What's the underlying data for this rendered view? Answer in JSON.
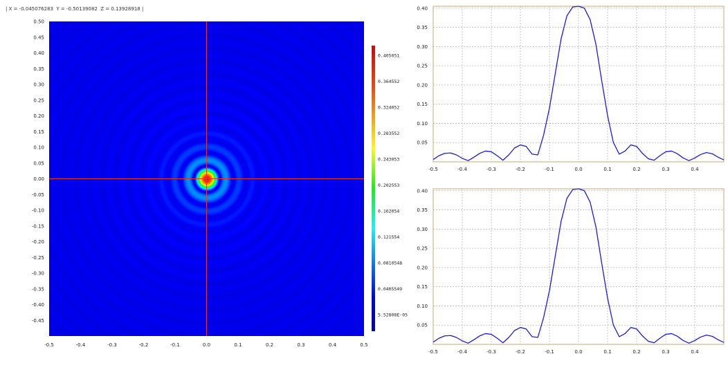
{
  "readout": {
    "text": "| X = -0.045076283  Y = -0.50139082  Z = 0.13928918 |"
  },
  "heatmap": {
    "xlim": [
      -0.5,
      0.5
    ],
    "ylim": [
      -0.5,
      0.5
    ],
    "x_ticks": [
      "-0.5",
      "-0.4",
      "-0.3",
      "-0.2",
      "-0.1",
      "0.0",
      "0.1",
      "0.2",
      "0.3",
      "0.4",
      "0.5"
    ],
    "y_ticks": [
      "0.50",
      "0.45",
      "0.40",
      "0.35",
      "0.30",
      "0.25",
      "0.20",
      "0.15",
      "0.10",
      "0.05",
      "0.00",
      "-0.05",
      "-0.10",
      "-0.15",
      "-0.20",
      "-0.25",
      "-0.30",
      "-0.35",
      "-0.40",
      "-0.45"
    ],
    "crosshair": {
      "x": 0.0,
      "y": 0.0,
      "color": "#e8322a"
    },
    "colorbar": {
      "min": 5.52808e-05,
      "max": 0.405051,
      "labels": [
        "0.405051",
        "0.364552",
        "0.324052",
        "0.283552",
        "0.243053",
        "0.202553",
        "0.162054",
        "0.121554",
        "0.0810548",
        "0.0405549",
        "5.52808E-05"
      ]
    }
  },
  "chart_data": [
    {
      "type": "heatmap",
      "title": "",
      "xlim": [
        -0.5,
        0.5
      ],
      "ylim": [
        -0.5,
        0.5
      ],
      "zlim": [
        5.52808e-05,
        0.405051
      ],
      "colormap": "jet",
      "peak": {
        "x": 0.0,
        "y": 0.0,
        "z": 0.405051
      },
      "ring_minima_radius": [
        0.13,
        0.25,
        0.37,
        0.49
      ]
    },
    {
      "type": "line",
      "xlim": [
        -0.5,
        0.5
      ],
      "ylim": [
        0.0,
        0.405
      ],
      "x_ticks": [
        "-0.5",
        "-0.4",
        "-0.3",
        "-0.2",
        "-0.1",
        "0.0",
        "0.1",
        "0.2",
        "0.3",
        "0.4"
      ],
      "y_ticks": [
        "0.40",
        "0.35",
        "0.30",
        "0.25",
        "0.20",
        "0.15",
        "0.10",
        "0.05"
      ],
      "grid": true,
      "line_color": "#1a1ae6",
      "series": [
        {
          "x": [
            -0.5,
            -0.48,
            -0.46,
            -0.44,
            -0.42,
            -0.4,
            -0.38,
            -0.36,
            -0.34,
            -0.32,
            -0.3,
            -0.28,
            -0.26,
            -0.24,
            -0.22,
            -0.2,
            -0.18,
            -0.16,
            -0.14,
            -0.12,
            -0.1,
            -0.08,
            -0.06,
            -0.04,
            -0.02,
            0.0,
            0.02,
            0.04,
            0.06,
            0.08,
            0.1,
            0.12,
            0.14,
            0.16,
            0.18,
            0.2,
            0.22,
            0.24,
            0.26,
            0.28,
            0.3,
            0.32,
            0.34,
            0.36,
            0.38,
            0.4,
            0.42,
            0.44,
            0.46,
            0.48,
            0.5
          ],
          "values": [
            0.006,
            0.016,
            0.022,
            0.023,
            0.018,
            0.009,
            0.003,
            0.012,
            0.022,
            0.028,
            0.026,
            0.016,
            0.004,
            0.018,
            0.036,
            0.044,
            0.04,
            0.02,
            0.018,
            0.07,
            0.14,
            0.23,
            0.32,
            0.38,
            0.403,
            0.405,
            0.4,
            0.37,
            0.305,
            0.21,
            0.12,
            0.05,
            0.02,
            0.028,
            0.044,
            0.04,
            0.022,
            0.008,
            0.004,
            0.016,
            0.026,
            0.028,
            0.021,
            0.01,
            0.003,
            0.01,
            0.019,
            0.024,
            0.021,
            0.012,
            0.005
          ]
        }
      ]
    },
    {
      "type": "line",
      "xlim": [
        -0.5,
        0.5
      ],
      "ylim": [
        0.0,
        0.405
      ],
      "x_ticks": [
        "-0.5",
        "-0.4",
        "-0.3",
        "-0.2",
        "-0.1",
        "0.0",
        "0.1",
        "0.2",
        "0.3",
        "0.4"
      ],
      "y_ticks": [
        "0.40",
        "0.35",
        "0.30",
        "0.25",
        "0.20",
        "0.15",
        "0.10",
        "0.05"
      ],
      "grid": true,
      "line_color": "#1a1ae6",
      "series": [
        {
          "x": [
            -0.5,
            -0.48,
            -0.46,
            -0.44,
            -0.42,
            -0.4,
            -0.38,
            -0.36,
            -0.34,
            -0.32,
            -0.3,
            -0.28,
            -0.26,
            -0.24,
            -0.22,
            -0.2,
            -0.18,
            -0.16,
            -0.14,
            -0.12,
            -0.1,
            -0.08,
            -0.06,
            -0.04,
            -0.02,
            0.0,
            0.02,
            0.04,
            0.06,
            0.08,
            0.1,
            0.12,
            0.14,
            0.16,
            0.18,
            0.2,
            0.22,
            0.24,
            0.26,
            0.28,
            0.3,
            0.32,
            0.34,
            0.36,
            0.38,
            0.4,
            0.42,
            0.44,
            0.46,
            0.48,
            0.5
          ],
          "values": [
            0.006,
            0.016,
            0.022,
            0.023,
            0.018,
            0.009,
            0.003,
            0.012,
            0.022,
            0.028,
            0.026,
            0.016,
            0.004,
            0.018,
            0.036,
            0.044,
            0.04,
            0.02,
            0.018,
            0.07,
            0.14,
            0.23,
            0.32,
            0.38,
            0.403,
            0.405,
            0.4,
            0.37,
            0.305,
            0.21,
            0.12,
            0.05,
            0.02,
            0.028,
            0.044,
            0.04,
            0.022,
            0.008,
            0.004,
            0.016,
            0.026,
            0.028,
            0.021,
            0.01,
            0.003,
            0.01,
            0.019,
            0.024,
            0.021,
            0.012,
            0.005
          ]
        }
      ]
    }
  ]
}
